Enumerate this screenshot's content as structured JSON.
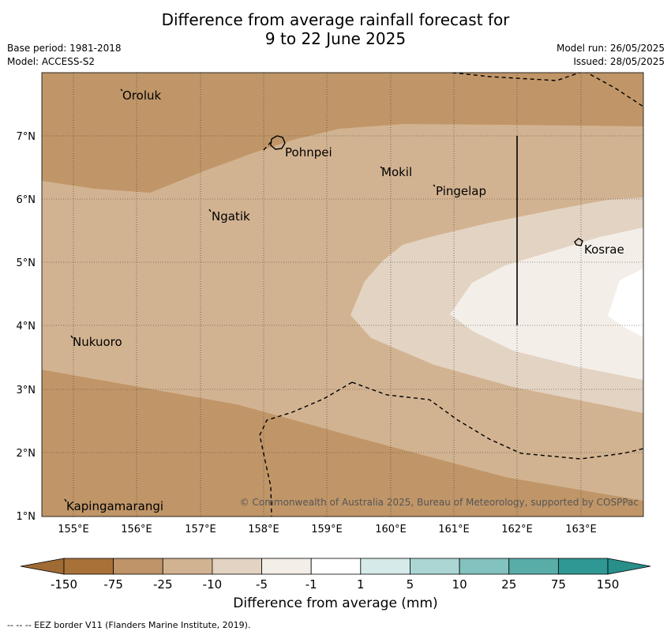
{
  "title": {
    "line1": "Difference from average rainfall forecast for",
    "line2": "9 to 22 June 2025"
  },
  "meta": {
    "base_period": "Base period: 1981-2018",
    "model": "Model: ACCESS-S2",
    "model_run": "Model run: 26/05/2025",
    "issued": "Issued: 28/05/2025"
  },
  "map": {
    "lon_labels": [
      "155°E",
      "156°E",
      "157°E",
      "158°E",
      "159°E",
      "160°E",
      "161°E",
      "162°E",
      "163°E"
    ],
    "lat_labels": [
      "7°N",
      "6°N",
      "5°N",
      "4°N",
      "3°N",
      "2°N",
      "1°N"
    ],
    "places": [
      "Oroluk",
      "Pohnpei",
      "Mokil",
      "Pingelap",
      "Ngatik",
      "Kosrae",
      "Nukuoro",
      "Kapingamarangi"
    ],
    "copyright": "© Commonwealth of Australia 2025, Bureau of Meteorology, supported by COSPPac",
    "fill_colors": {
      "lt_-25": "#c09668",
      "-25_-10": "#d2b391",
      "-10_-5": "#e3d3c2",
      "-5_-1": "#f4eee8",
      "-1_1": "#ffffff"
    }
  },
  "legend": {
    "title": "Difference from average (mm)",
    "ticks": [
      "-150",
      "-75",
      "-25",
      "-10",
      "-5",
      "-1",
      "1",
      "5",
      "10",
      "25",
      "75",
      "150"
    ],
    "colors": [
      "#a87138",
      "#bf9468",
      "#d2b391",
      "#e3d3c2",
      "#f4eee8",
      "#ffffff",
      "#d6ebe9",
      "#acd6d4",
      "#82c2bf",
      "#59ada9",
      "#2f9894"
    ],
    "extend_low_color": "#a06a34",
    "extend_high_color": "#298f8b"
  },
  "footnote": "--  --  -- EEZ border V11 (Flanders Marine Institute, 2019)."
}
